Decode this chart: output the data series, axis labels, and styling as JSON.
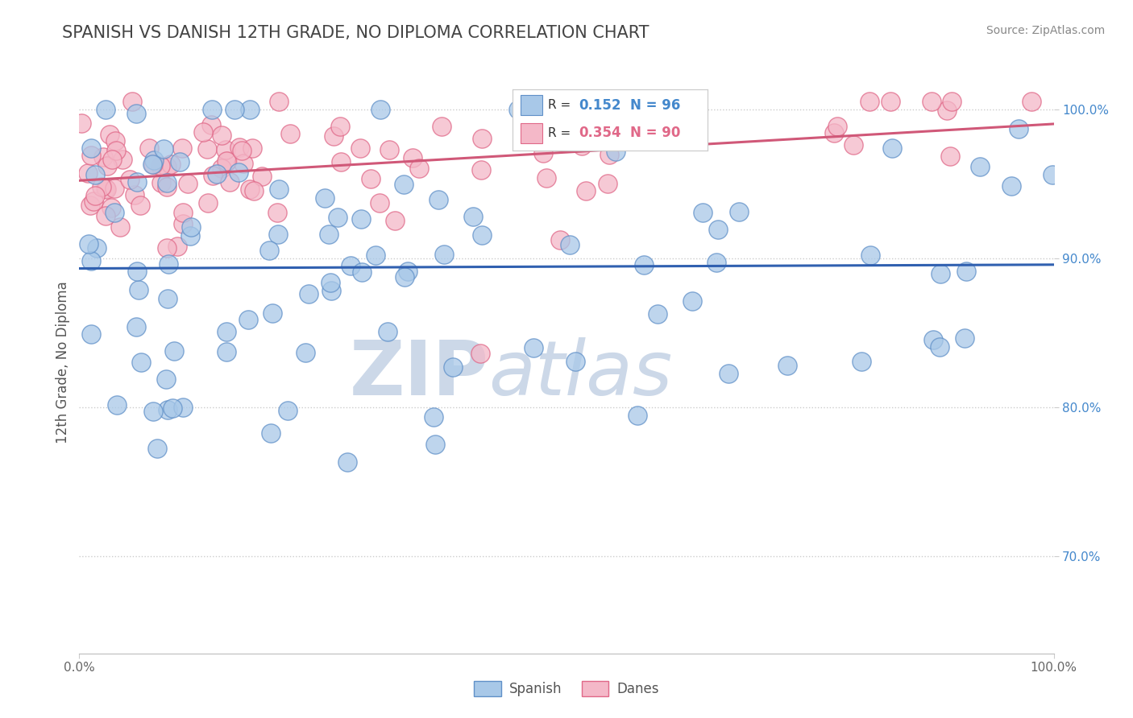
{
  "title": "SPANISH VS DANISH 12TH GRADE, NO DIPLOMA CORRELATION CHART",
  "source_text": "Source: ZipAtlas.com",
  "ylabel": "12th Grade, No Diploma",
  "xlim": [
    0.0,
    1.0
  ],
  "ylim": [
    0.635,
    1.025
  ],
  "yticks": [
    0.7,
    0.8,
    0.9,
    1.0
  ],
  "ytick_labels": [
    "70.0%",
    "80.0%",
    "90.0%",
    "100.0%"
  ],
  "xticks": [
    0.0,
    1.0
  ],
  "xtick_labels": [
    "0.0%",
    "100.0%"
  ],
  "spanish_R": 0.152,
  "spanish_N": 96,
  "danish_R": 0.354,
  "danish_N": 90,
  "blue_color": "#a8c8e8",
  "pink_color": "#f4b8c8",
  "blue_edge_color": "#6090c8",
  "pink_edge_color": "#e06888",
  "blue_line_color": "#3060b0",
  "pink_line_color": "#d05878",
  "background_color": "#ffffff",
  "watermark_text": "ZIPatlas",
  "watermark_color": "#ccd8e8",
  "legend_labels": [
    "Spanish",
    "Danes"
  ],
  "grid_color": "#cccccc",
  "title_color": "#444444",
  "source_color": "#888888",
  "ylabel_color": "#555555",
  "ytick_color": "#4488cc",
  "xtick_color": "#666666"
}
